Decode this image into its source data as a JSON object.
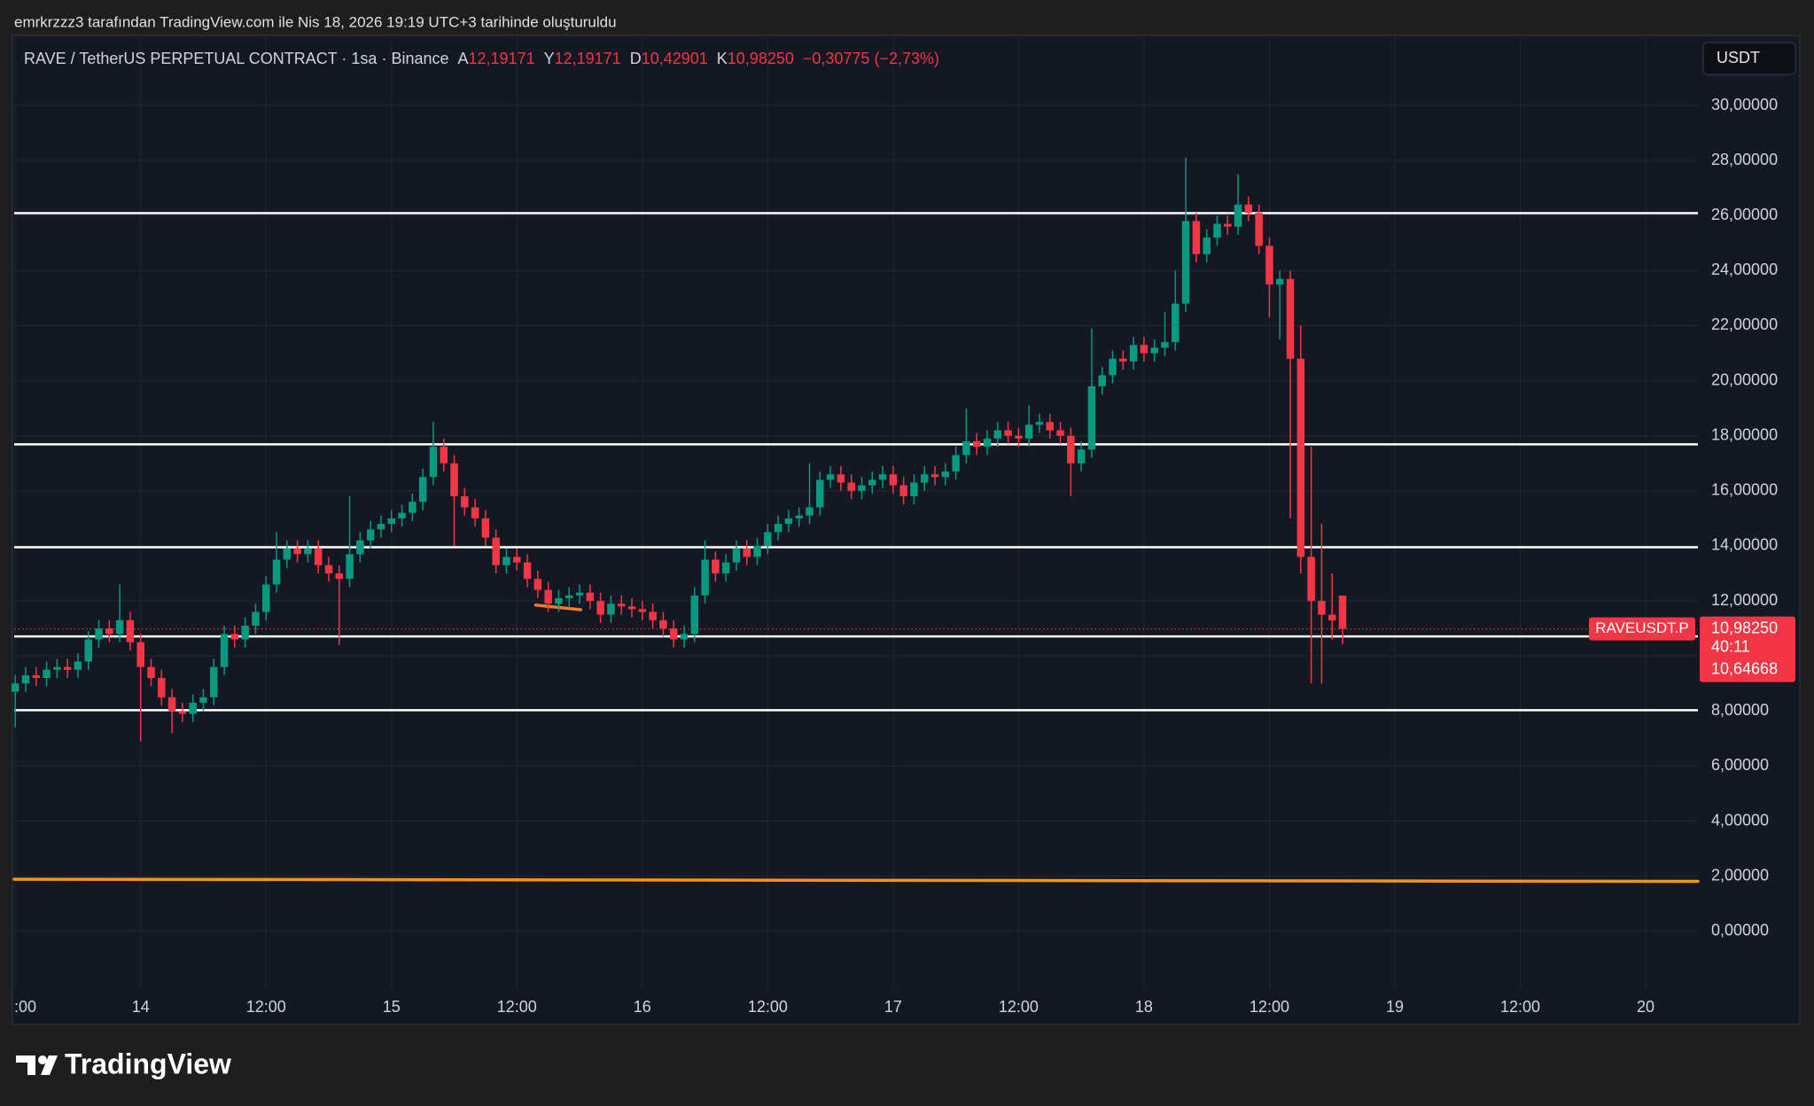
{
  "header": {
    "caption": "emrkrzzz3 tarafından TradingView.com ile Nis 18, 2026 19:19 UTC+3 tarihinde oluşturuldu"
  },
  "chart_data": {
    "type": "candlestick",
    "title": "RAVE / TetherUS PERPETUAL CONTRACT · 1sa · Binance",
    "ohlc_legend": [
      {
        "key": "A",
        "value": "12,19171"
      },
      {
        "key": "Y",
        "value": "12,19171"
      },
      {
        "key": "D",
        "value": "10,42901"
      },
      {
        "key": "K",
        "value": "10,98250"
      }
    ],
    "change": "−0,30775 (−2,73%)",
    "currency": "USDT",
    "up_color": "#089981",
    "down_color": "#f23645",
    "open": [
      8.7,
      9.0,
      9.3,
      9.2,
      9.5,
      9.6,
      9.5,
      9.8,
      10.6,
      11.0,
      10.8,
      11.3,
      10.5,
      9.6,
      9.2,
      8.5,
      8.0,
      7.9,
      8.3,
      8.5,
      9.6,
      10.8,
      10.6,
      11.1,
      11.6,
      12.6,
      13.5,
      13.9,
      13.7,
      13.9,
      13.3,
      13.0,
      12.8,
      13.7,
      14.2,
      14.6,
      14.8,
      15.0,
      15.2,
      15.6,
      16.5,
      17.6,
      17.0,
      15.8,
      15.4,
      15.0,
      14.3,
      13.3,
      13.6,
      13.4,
      12.8,
      12.4,
      11.9,
      12.1,
      12.2,
      12.3,
      12.0,
      11.5,
      11.9,
      11.8,
      11.7,
      11.6,
      11.3,
      11.0,
      10.6,
      10.8,
      12.2,
      13.5,
      13.0,
      13.4,
      13.9,
      13.6,
      14.0,
      14.5,
      14.8,
      15.0,
      15.1,
      15.4,
      16.4,
      16.6,
      16.3,
      16.0,
      16.2,
      16.4,
      16.6,
      16.2,
      15.8,
      16.3,
      16.6,
      16.5,
      16.7,
      17.3,
      17.8,
      17.6,
      17.9,
      18.2,
      18.0,
      17.9,
      18.4,
      18.5,
      18.2,
      18.0,
      17.0,
      17.5,
      19.8,
      20.2,
      20.8,
      20.7,
      21.3,
      21.0,
      21.2,
      21.4,
      22.8,
      25.8,
      24.6,
      25.2,
      25.7,
      25.6,
      26.4,
      26.1,
      24.9,
      23.5,
      23.7,
      20.8,
      13.6,
      12.0,
      11.5,
      12.19171
    ],
    "high": [
      9.3,
      9.6,
      9.6,
      9.8,
      9.9,
      9.9,
      10.1,
      10.9,
      11.3,
      11.3,
      12.6,
      11.6,
      10.8,
      9.9,
      9.5,
      8.8,
      8.3,
      8.6,
      8.8,
      9.9,
      11.1,
      11.1,
      11.4,
      11.9,
      12.9,
      14.5,
      14.2,
      14.2,
      14.2,
      14.2,
      13.6,
      13.3,
      15.8,
      14.5,
      14.9,
      15.1,
      15.3,
      15.5,
      15.9,
      16.8,
      18.5,
      17.9,
      17.3,
      16.1,
      15.7,
      15.3,
      14.6,
      13.9,
      13.9,
      13.7,
      13.1,
      12.7,
      12.4,
      12.5,
      12.6,
      12.6,
      12.3,
      12.2,
      12.2,
      12.1,
      12.0,
      11.9,
      11.6,
      11.3,
      11.1,
      12.5,
      14.2,
      13.8,
      13.7,
      14.2,
      14.2,
      14.3,
      14.8,
      15.1,
      15.3,
      15.4,
      17.0,
      16.7,
      16.9,
      16.9,
      16.6,
      16.5,
      16.7,
      16.9,
      16.9,
      16.5,
      16.6,
      16.9,
      16.9,
      17.0,
      17.6,
      19.0,
      18.1,
      18.2,
      18.5,
      18.5,
      18.3,
      19.1,
      18.8,
      18.8,
      18.5,
      18.3,
      17.8,
      21.9,
      20.5,
      21.1,
      21.1,
      21.6,
      21.6,
      21.5,
      22.5,
      24.0,
      28.1,
      26.1,
      25.5,
      26.0,
      26.0,
      27.5,
      26.7,
      26.4,
      25.2,
      24.0,
      24.0,
      22.0,
      17.6,
      14.8,
      13.0,
      12.19171
    ],
    "low": [
      7.4,
      8.7,
      8.9,
      8.9,
      9.2,
      9.2,
      9.2,
      9.5,
      10.3,
      10.5,
      10.5,
      10.2,
      6.9,
      8.9,
      8.2,
      7.2,
      7.6,
      7.6,
      8.0,
      8.2,
      9.3,
      10.3,
      10.3,
      10.8,
      11.3,
      12.3,
      13.2,
      13.4,
      13.4,
      13.0,
      12.7,
      10.4,
      12.5,
      13.4,
      13.9,
      14.3,
      14.5,
      14.7,
      14.9,
      15.3,
      16.2,
      16.7,
      14.0,
      15.1,
      14.7,
      14.0,
      13.0,
      13.0,
      13.1,
      12.5,
      12.1,
      11.6,
      11.6,
      11.8,
      11.9,
      11.7,
      11.2,
      11.2,
      11.5,
      11.4,
      11.3,
      11.0,
      10.7,
      10.3,
      10.3,
      10.5,
      11.9,
      12.7,
      12.7,
      13.1,
      13.3,
      13.3,
      13.7,
      14.2,
      14.5,
      14.7,
      14.8,
      15.1,
      16.1,
      16.0,
      15.7,
      15.7,
      15.9,
      16.1,
      15.9,
      15.5,
      15.5,
      16.0,
      16.2,
      16.2,
      16.4,
      17.0,
      17.3,
      17.3,
      17.6,
      17.7,
      17.6,
      17.6,
      18.1,
      17.9,
      17.7,
      15.8,
      16.7,
      17.2,
      19.5,
      19.9,
      20.4,
      20.4,
      20.7,
      20.7,
      20.9,
      21.1,
      22.5,
      24.3,
      24.3,
      24.9,
      25.3,
      25.3,
      25.8,
      24.6,
      22.3,
      21.5,
      15.0,
      13.0,
      9.0,
      9.0,
      10.6,
      10.42901
    ],
    "close": [
      9.0,
      9.3,
      9.2,
      9.5,
      9.6,
      9.5,
      9.8,
      10.6,
      11.0,
      10.8,
      11.3,
      10.5,
      9.6,
      9.2,
      8.5,
      8.0,
      7.9,
      8.3,
      8.5,
      9.6,
      10.8,
      10.6,
      11.1,
      11.6,
      12.6,
      13.5,
      13.9,
      13.7,
      13.9,
      13.3,
      13.0,
      12.8,
      13.7,
      14.2,
      14.6,
      14.8,
      15.0,
      15.2,
      15.6,
      16.5,
      17.6,
      17.0,
      15.8,
      15.4,
      15.0,
      14.3,
      13.3,
      13.6,
      13.4,
      12.8,
      12.4,
      11.9,
      12.1,
      12.2,
      12.3,
      12.0,
      11.5,
      11.9,
      11.8,
      11.7,
      11.6,
      11.3,
      11.0,
      10.6,
      10.8,
      12.2,
      13.5,
      13.0,
      13.4,
      13.9,
      13.6,
      14.0,
      14.5,
      14.8,
      15.0,
      15.1,
      15.4,
      16.4,
      16.6,
      16.3,
      16.0,
      16.2,
      16.4,
      16.6,
      16.2,
      15.8,
      16.3,
      16.6,
      16.5,
      16.7,
      17.3,
      17.8,
      17.6,
      17.9,
      18.2,
      18.0,
      17.9,
      18.4,
      18.5,
      18.2,
      18.0,
      17.0,
      17.5,
      19.8,
      20.2,
      20.8,
      20.7,
      21.3,
      21.0,
      21.2,
      21.4,
      22.8,
      25.8,
      24.6,
      25.2,
      25.7,
      25.6,
      26.4,
      26.1,
      24.9,
      23.5,
      23.7,
      20.8,
      13.6,
      12.0,
      11.5,
      11.29025,
      10.9825
    ],
    "xlim": [
      -0.1,
      161
    ],
    "xticks": [
      {
        "value": 0,
        "label": ":00"
      },
      {
        "value": 12,
        "label": "14"
      },
      {
        "value": 24,
        "label": "12:00"
      },
      {
        "value": 36,
        "label": "15"
      },
      {
        "value": 48,
        "label": "12:00"
      },
      {
        "value": 60,
        "label": "16"
      },
      {
        "value": 72,
        "label": "12:00"
      },
      {
        "value": 84,
        "label": "17"
      },
      {
        "value": 96,
        "label": "12:00"
      },
      {
        "value": 108,
        "label": "18"
      },
      {
        "value": 120,
        "label": "12:00"
      },
      {
        "value": 132,
        "label": "19"
      },
      {
        "value": 144,
        "label": "12:00"
      },
      {
        "value": 156,
        "label": "20"
      }
    ],
    "ylim": [
      -2.1,
      32.48
    ],
    "yticks": [
      {
        "value": 0,
        "label": "0,00000"
      },
      {
        "value": 2,
        "label": "2,00000"
      },
      {
        "value": 4,
        "label": "4,00000"
      },
      {
        "value": 6,
        "label": "6,00000"
      },
      {
        "value": 8,
        "label": "8,00000"
      },
      {
        "value": 10,
        "label": "10,00000"
      },
      {
        "value": 12,
        "label": "12,00000"
      },
      {
        "value": 14,
        "label": "14,00000"
      },
      {
        "value": 16,
        "label": "16,00000"
      },
      {
        "value": 18,
        "label": "18,00000"
      },
      {
        "value": 20,
        "label": "20,00000"
      },
      {
        "value": 22,
        "label": "22,00000"
      },
      {
        "value": 24,
        "label": "24,00000"
      },
      {
        "value": 26,
        "label": "26,00000"
      },
      {
        "value": 28,
        "label": "28,00000"
      },
      {
        "value": 30,
        "label": "30,00000"
      }
    ],
    "grid": true,
    "hlines": [
      {
        "value": 26.09,
        "color": "#ffffff"
      },
      {
        "value": 17.69,
        "color": "#ffffff"
      },
      {
        "value": 13.95,
        "color": "#ffffff"
      },
      {
        "value": 10.71,
        "color": "#ffffff"
      },
      {
        "value": 8.03,
        "color": "#ffffff"
      }
    ],
    "trend_lines": [
      {
        "x": [
          49.8,
          54.1
        ],
        "y": [
          11.85,
          11.68
        ],
        "color": "#f57c2a"
      },
      {
        "x": [
          -0.1,
          161
        ],
        "y": [
          1.89,
          1.81
        ],
        "color": "#f7931a"
      }
    ],
    "last_price": {
      "value": 10.9825,
      "label": "10,98250",
      "symbol": "RAVEUSDT.P",
      "countdown": "40:11",
      "second_label": "10,64668"
    }
  },
  "footer": {
    "brand": "TradingView"
  }
}
